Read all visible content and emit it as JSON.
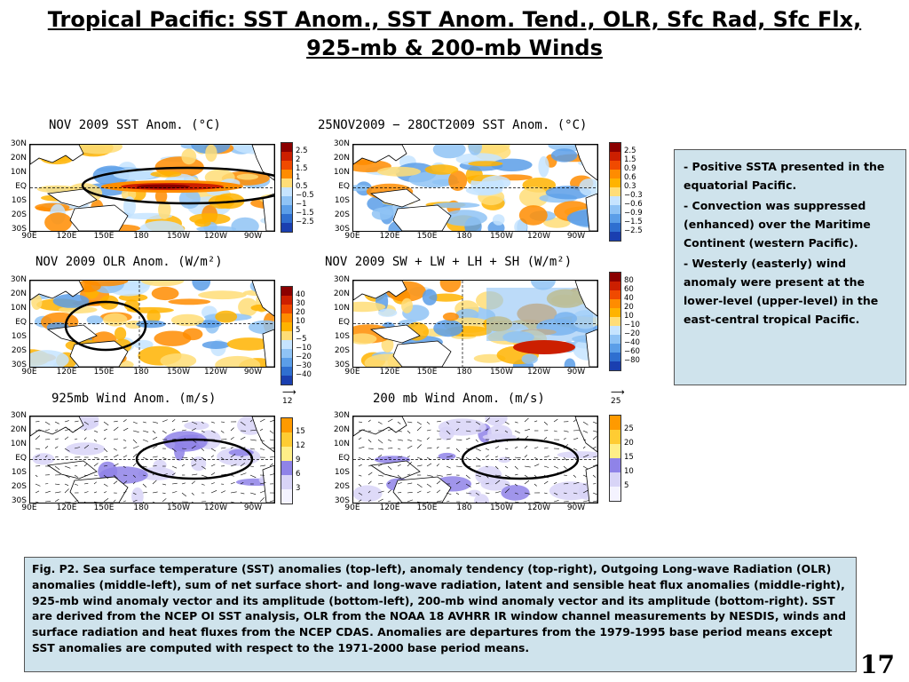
{
  "slide": {
    "title": "Tropical Pacific: SST Anom., SST Anom. Tend., OLR, Sfc Rad, Sfc Flx, 925-mb & 200-mb Winds",
    "page_number": "17"
  },
  "axes": {
    "lat_labels": [
      "30N",
      "20N",
      "10N",
      "EQ",
      "10S",
      "20S",
      "30S"
    ],
    "lon_labels": [
      "90E",
      "120E",
      "150E",
      "180",
      "150W",
      "120W",
      "90W"
    ]
  },
  "panels": [
    {
      "title": "NOV 2009 SST Anom. (°C)",
      "colorbar": [
        "2.5",
        "2",
        "1.5",
        "1",
        "0.5",
        "−0.5",
        "−1",
        "−1.5",
        "−2.5"
      ]
    },
    {
      "title": "25NOV2009 − 28OCT2009 SST Anom. (°C)",
      "colorbar": [
        "2.5",
        "1.5",
        "0.9",
        "0.6",
        "0.3",
        "−0.3",
        "−0.6",
        "−0.9",
        "−1.5",
        "−2.5"
      ]
    },
    {
      "title": "NOV 2009 OLR Anom. (W/m²)",
      "colorbar": [
        "40",
        "30",
        "20",
        "10",
        "5",
        "−5",
        "−10",
        "−20",
        "−30",
        "−40"
      ]
    },
    {
      "title": "NOV 2009 SW + LW + LH + SH (W/m²)",
      "colorbar": [
        "80",
        "60",
        "40",
        "20",
        "10",
        "−10",
        "−20",
        "−40",
        "−60",
        "−80"
      ]
    },
    {
      "title": "925mb Wind Anom. (m/s)",
      "vector_ref": "12",
      "colorbar": [
        "15",
        "12",
        "9",
        "6",
        "3"
      ]
    },
    {
      "title": "200 mb Wind Anom. (m/s)",
      "vector_ref": "25",
      "colorbar": [
        "25",
        "20",
        "15",
        "10",
        "5"
      ]
    }
  ],
  "sidebar": {
    "bullets": [
      "Positive SSTA presented in the equatorial Pacific.",
      " Convection was suppressed (enhanced) over the Maritime Continent (western Pacific).",
      "Westerly (easterly) wind anomaly were present at the lower-level (upper-level) in the east-central  tropical Pacific."
    ]
  },
  "caption": "Fig. P2. Sea surface temperature (SST) anomalies (top-left), anomaly tendency (top-right), Outgoing Long-wave Radiation (OLR) anomalies (middle-left), sum of net surface short- and long-wave radiation, latent and sensible heat flux anomalies (middle-right), 925-mb wind anomaly vector and its amplitude (bottom-left), 200-mb wind anomaly vector and its amplitude  (bottom-right). SST are derived from the NCEP OI SST analysis, OLR from the NOAA 18 AVHRR IR window channel measurements by NESDIS, winds and surface radiation and heat fluxes from the NCEP CDAS. Anomalies are  departures from the 1979-1995 base period means except SST anomalies are computed with respect to the 1971-2000 base period means.",
  "colors": {
    "panel_bg": "#cfe3ec",
    "warm": [
      "#8b0000",
      "#cc1f00",
      "#f04a00",
      "#ff8c00",
      "#ffb300",
      "#ffdd77"
    ],
    "cool": [
      "#c6e4ff",
      "#8fc3f5",
      "#5b9ee8",
      "#2f6fd0",
      "#1a3fb0"
    ],
    "wind": [
      "#ff9a00",
      "#ffcc33",
      "#ffee88",
      "#8f83e8",
      "#d8d4f7"
    ]
  }
}
